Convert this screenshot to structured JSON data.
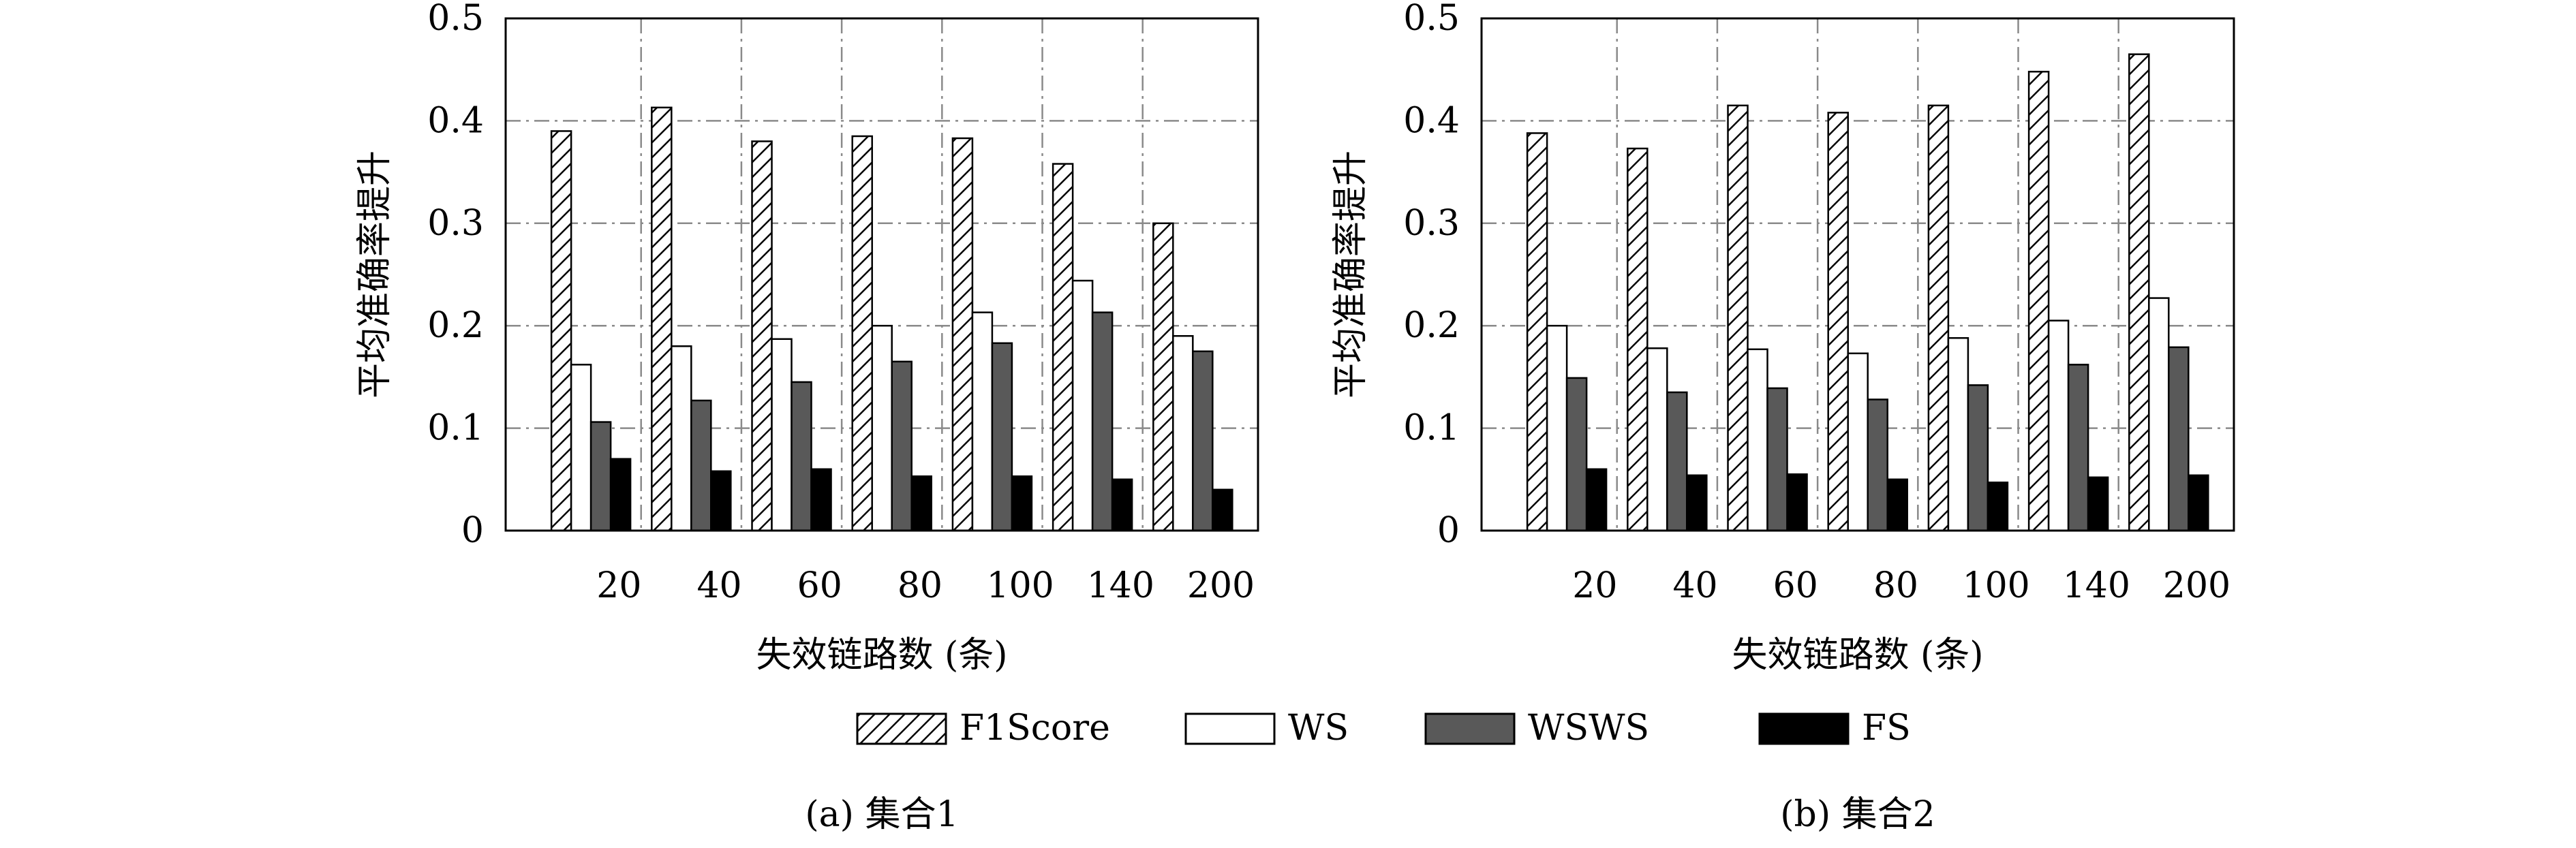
{
  "legend": {
    "items": [
      {
        "label": "F1Score",
        "fill": "hatch"
      },
      {
        "label": "WS",
        "fill": "#ffffff"
      },
      {
        "label": "WSWS",
        "fill": "#595959"
      },
      {
        "label": "FS",
        "fill": "#000000"
      }
    ]
  },
  "chart_data": [
    {
      "type": "bar",
      "caption": "(a) 集合1",
      "xlabel": "失效链路数 (条)",
      "ylabel": "平均准确率提升",
      "ylim": [
        0,
        0.5
      ],
      "yticks": [
        "0",
        "0.1",
        "0.2",
        "0.3",
        "0.4",
        "0.5"
      ],
      "grid": true,
      "categories": [
        "20",
        "40",
        "60",
        "80",
        "100",
        "140",
        "200"
      ],
      "series": [
        {
          "name": "F1Score",
          "values": [
            0.39,
            0.413,
            0.38,
            0.385,
            0.383,
            0.358,
            0.3
          ]
        },
        {
          "name": "WS",
          "values": [
            0.162,
            0.18,
            0.187,
            0.2,
            0.213,
            0.244,
            0.19
          ]
        },
        {
          "name": "WSWS",
          "values": [
            0.106,
            0.127,
            0.145,
            0.165,
            0.183,
            0.213,
            0.175
          ]
        },
        {
          "name": "FS",
          "values": [
            0.07,
            0.058,
            0.06,
            0.053,
            0.053,
            0.05,
            0.04
          ]
        }
      ]
    },
    {
      "type": "bar",
      "caption": "(b) 集合2",
      "xlabel": "失效链路数 (条)",
      "ylabel": "平均准确率提升",
      "ylim": [
        0,
        0.5
      ],
      "yticks": [
        "0",
        "0.1",
        "0.2",
        "0.3",
        "0.4",
        "0.5"
      ],
      "grid": true,
      "categories": [
        "20",
        "40",
        "60",
        "80",
        "100",
        "140",
        "200"
      ],
      "series": [
        {
          "name": "F1Score",
          "values": [
            0.388,
            0.373,
            0.415,
            0.408,
            0.415,
            0.448,
            0.465
          ]
        },
        {
          "name": "WS",
          "values": [
            0.2,
            0.178,
            0.177,
            0.173,
            0.188,
            0.205,
            0.227
          ]
        },
        {
          "name": "WSWS",
          "values": [
            0.149,
            0.135,
            0.139,
            0.128,
            0.142,
            0.162,
            0.179
          ]
        },
        {
          "name": "FS",
          "values": [
            0.06,
            0.054,
            0.055,
            0.05,
            0.047,
            0.052,
            0.054
          ]
        }
      ]
    }
  ]
}
